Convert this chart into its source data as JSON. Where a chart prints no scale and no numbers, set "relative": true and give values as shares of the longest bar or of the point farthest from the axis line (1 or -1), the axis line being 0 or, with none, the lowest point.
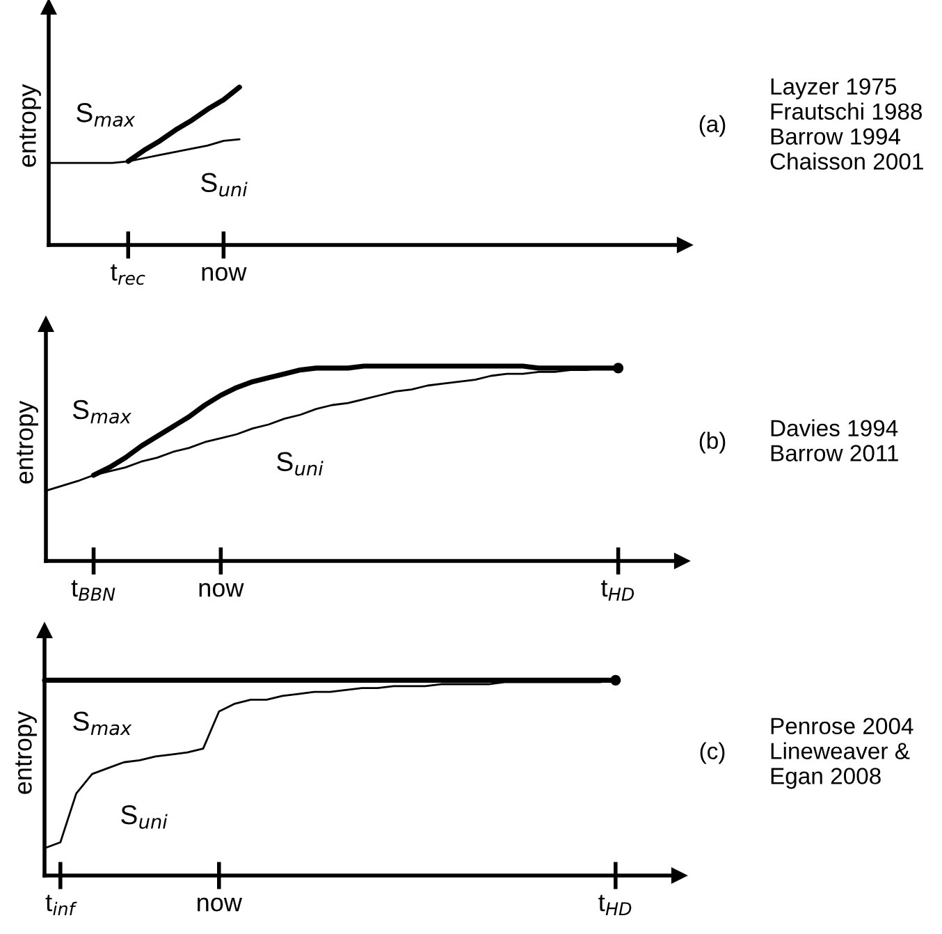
{
  "chart_data": [
    {
      "type": "line",
      "relative": true,
      "ylabel": "entropy",
      "categories": [
        null,
        null,
        null,
        null,
        null,
        "t$_{rec}$",
        null,
        null,
        null,
        null,
        null,
        "now",
        null,
        null,
        null,
        null,
        null,
        null,
        null,
        null,
        null,
        null,
        null,
        null,
        null,
        null,
        null,
        null,
        null,
        null,
        null,
        null,
        null,
        null,
        null,
        null,
        null,
        null,
        null,
        null
      ],
      "annotations": [
        "(a)",
        "Layzer 1975\nFrautschi 1988\nBarrow 1994\nChaisson 2001"
      ],
      "series": [
        {
          "name": "S$_{max}$",
          "color": "#000000",
          "values": [
            null,
            null,
            null,
            null,
            null,
            0.53,
            0.6,
            0.66,
            0.73,
            0.79,
            0.86,
            0.92,
            1,
            null,
            null,
            null,
            null,
            null,
            null,
            null,
            null,
            null,
            null,
            null,
            null,
            null,
            null,
            null,
            null,
            null,
            null,
            null,
            null,
            null,
            null,
            null,
            null,
            null,
            null,
            null
          ]
        },
        {
          "name": "S$_{uni}$",
          "color": "#000000",
          "values": [
            0.52,
            0.52,
            0.52,
            0.52,
            0.52,
            0.53,
            0.55,
            0.57,
            0.59,
            0.61,
            0.63,
            0.66,
            0.67,
            null,
            null,
            null,
            null,
            null,
            null,
            null,
            null,
            null,
            null,
            null,
            null,
            null,
            null,
            null,
            null,
            null,
            null,
            null,
            null,
            null,
            null,
            null,
            null,
            null,
            null,
            null
          ]
        }
      ]
    },
    {
      "type": "line",
      "relative": true,
      "ylabel": "entropy",
      "categories": [
        null,
        null,
        null,
        "t$_{BBN}$",
        null,
        null,
        null,
        null,
        null,
        null,
        null,
        "now",
        null,
        null,
        null,
        null,
        null,
        null,
        null,
        null,
        null,
        null,
        null,
        null,
        null,
        null,
        null,
        null,
        null,
        null,
        null,
        null,
        null,
        null,
        null,
        null,
        "t$_{HD}$",
        null,
        null,
        null
      ],
      "annotations": [
        "(b)",
        "Davies 1994\nBarrow 2011"
      ],
      "series": [
        {
          "name": "S$_{max}$",
          "color": "#000000",
          "values": [
            null,
            null,
            null,
            0.44,
            0.48,
            0.53,
            0.59,
            0.64,
            0.69,
            0.74,
            0.8,
            0.85,
            0.89,
            0.92,
            0.94,
            0.96,
            0.98,
            0.99,
            0.99,
            0.99,
            1.0,
            1.0,
            1.0,
            1.0,
            1.0,
            1.0,
            1.0,
            1.0,
            1.0,
            1.0,
            1.0,
            0.99,
            0.99,
            0.99,
            0.99,
            0.99,
            0.99,
            null,
            null,
            null
          ]
        },
        {
          "name": "S$_{uni}$",
          "color": "#000000",
          "values": [
            0.36,
            0.385,
            0.41,
            0.44,
            0.46,
            0.48,
            0.51,
            0.53,
            0.56,
            0.58,
            0.61,
            0.63,
            0.65,
            0.68,
            0.7,
            0.73,
            0.75,
            0.78,
            0.8,
            0.81,
            0.83,
            0.85,
            0.87,
            0.88,
            0.9,
            0.91,
            0.92,
            0.93,
            0.95,
            0.96,
            0.96,
            0.97,
            0.97,
            0.98,
            0.98,
            0.99,
            0.99,
            null,
            null,
            null
          ]
        },
        {
          "type": "scatter",
          "color": "#000000",
          "values": [
            null,
            null,
            null,
            null,
            null,
            null,
            null,
            null,
            null,
            null,
            null,
            null,
            null,
            null,
            null,
            null,
            null,
            null,
            null,
            null,
            null,
            null,
            null,
            null,
            null,
            null,
            null,
            null,
            null,
            null,
            null,
            null,
            null,
            null,
            null,
            null,
            0.99,
            null,
            null,
            null
          ]
        }
      ]
    },
    {
      "type": "line",
      "relative": true,
      "ylabel": "entropy",
      "categories": [
        null,
        "t$_{inf}$",
        null,
        null,
        null,
        null,
        null,
        null,
        null,
        null,
        null,
        "now",
        null,
        null,
        null,
        null,
        null,
        null,
        null,
        null,
        null,
        null,
        null,
        null,
        null,
        null,
        null,
        null,
        null,
        null,
        null,
        null,
        null,
        null,
        null,
        null,
        "t$_{HD}$",
        null,
        null,
        null
      ],
      "annotations": [
        "(c)",
        "Penrose 2004\nLineweaver &\nEgan 2008"
      ],
      "series": [
        {
          "name": "S$_{max}$",
          "color": "#000000",
          "values": [
            1,
            1,
            1,
            1,
            1,
            1,
            1,
            1,
            1,
            1,
            1,
            1,
            1,
            1,
            1,
            1,
            1,
            1,
            1,
            1,
            1,
            1,
            1,
            1,
            1,
            1,
            1,
            1,
            1,
            1,
            1,
            1,
            1,
            1,
            1,
            1,
            1,
            null,
            null,
            null
          ]
        },
        {
          "name": "S$_{uni}$",
          "color": "#000000",
          "values": [
            0.14,
            0.17,
            0.42,
            0.52,
            0.55,
            0.58,
            0.59,
            0.61,
            0.62,
            0.63,
            0.65,
            0.84,
            0.88,
            0.9,
            0.9,
            0.92,
            0.93,
            0.94,
            0.94,
            0.95,
            0.96,
            0.96,
            0.97,
            0.97,
            0.97,
            0.98,
            0.98,
            0.98,
            0.98,
            0.99,
            0.99,
            0.99,
            0.99,
            0.99,
            0.99,
            0.99,
            1.0,
            null,
            null,
            null
          ]
        },
        {
          "type": "scatter",
          "color": "#000000",
          "values": [
            null,
            null,
            null,
            null,
            null,
            null,
            null,
            null,
            null,
            null,
            null,
            null,
            null,
            null,
            null,
            null,
            null,
            null,
            null,
            null,
            null,
            null,
            null,
            null,
            null,
            null,
            null,
            null,
            null,
            null,
            null,
            null,
            null,
            null,
            null,
            null,
            1.0,
            null,
            null,
            null
          ]
        }
      ]
    }
  ]
}
